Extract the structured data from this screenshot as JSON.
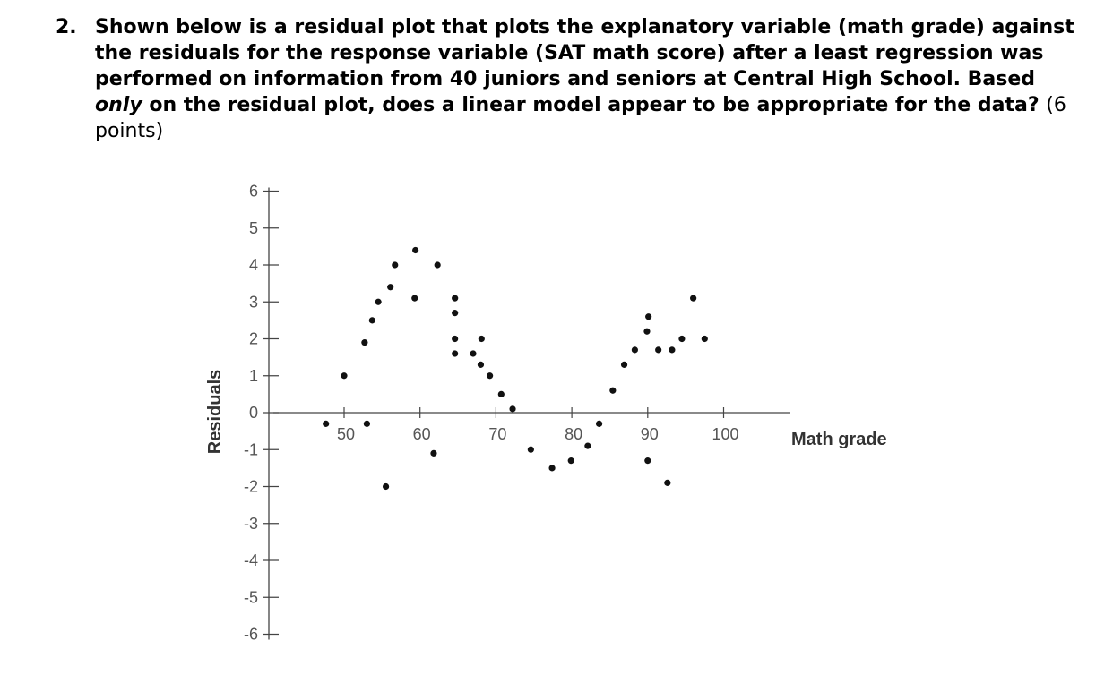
{
  "question": {
    "number": "2.",
    "text_before_emphasis": "Shown below is a residual plot that plots the explanatory variable (math grade) against the residuals for the response variable (SAT math score) after a least regression was performed on information from 40 juniors and seniors at Central High School. Based ",
    "emphasis": "only",
    "text_after_emphasis": " on the residual plot, does a linear model appear to be appropriate for the data?",
    "points": "(6 points)"
  },
  "chart_data": {
    "type": "scatter",
    "title": "",
    "xlabel": "Math grade",
    "ylabel": "Residuals",
    "xlim": [
      40,
      110
    ],
    "ylim": [
      -6,
      6
    ],
    "x_ticks": [
      50,
      60,
      70,
      80,
      90,
      100
    ],
    "x_tick_labels": [
      "50",
      "60",
      "70",
      "80",
      "90",
      "100"
    ],
    "y_ticks": [
      6,
      5,
      4,
      3,
      2,
      1,
      0,
      -1,
      -2,
      -3,
      -4,
      -5,
      -6
    ],
    "y_tick_labels": [
      "6",
      "5",
      "4",
      "3",
      "2",
      "1",
      "0",
      "-1",
      "-2",
      "-3",
      "-4",
      "-5",
      "-6"
    ],
    "grid": false,
    "points": [
      {
        "x": 47.6,
        "y": -0.3
      },
      {
        "x": 50.0,
        "y": 1.0
      },
      {
        "x": 52.7,
        "y": 1.9
      },
      {
        "x": 53.0,
        "y": -0.3
      },
      {
        "x": 53.7,
        "y": 2.5
      },
      {
        "x": 54.5,
        "y": 3.0
      },
      {
        "x": 55.5,
        "y": -2.0
      },
      {
        "x": 56.1,
        "y": 3.4
      },
      {
        "x": 56.7,
        "y": 4.0
      },
      {
        "x": 59.3,
        "y": 3.1
      },
      {
        "x": 59.4,
        "y": 4.4
      },
      {
        "x": 61.8,
        "y": -1.1
      },
      {
        "x": 62.3,
        "y": 4.0
      },
      {
        "x": 64.6,
        "y": 1.6
      },
      {
        "x": 64.6,
        "y": 2.0
      },
      {
        "x": 64.6,
        "y": 2.7
      },
      {
        "x": 64.6,
        "y": 3.1
      },
      {
        "x": 67.0,
        "y": 1.6
      },
      {
        "x": 68.0,
        "y": 1.3
      },
      {
        "x": 68.1,
        "y": 2.0
      },
      {
        "x": 69.2,
        "y": 1.0
      },
      {
        "x": 70.7,
        "y": 0.5
      },
      {
        "x": 72.2,
        "y": 0.1
      },
      {
        "x": 74.6,
        "y": -1.0
      },
      {
        "x": 77.4,
        "y": -1.5
      },
      {
        "x": 79.9,
        "y": -1.3
      },
      {
        "x": 82.1,
        "y": -0.9
      },
      {
        "x": 83.6,
        "y": -0.3
      },
      {
        "x": 85.4,
        "y": 0.6
      },
      {
        "x": 86.9,
        "y": 1.3
      },
      {
        "x": 88.3,
        "y": 1.7
      },
      {
        "x": 89.9,
        "y": 2.2
      },
      {
        "x": 90.0,
        "y": -1.3
      },
      {
        "x": 90.1,
        "y": 2.6
      },
      {
        "x": 91.4,
        "y": 1.7
      },
      {
        "x": 92.6,
        "y": -1.9
      },
      {
        "x": 93.2,
        "y": 1.7
      },
      {
        "x": 94.5,
        "y": 2.0
      },
      {
        "x": 96.0,
        "y": 3.1
      },
      {
        "x": 97.5,
        "y": 2.0
      }
    ]
  }
}
